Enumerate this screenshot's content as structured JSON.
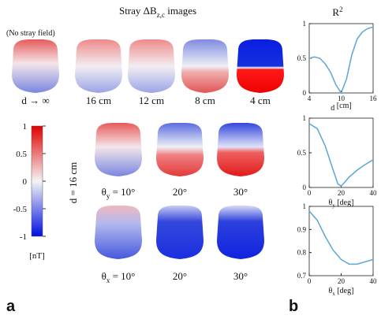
{
  "panel_a": {
    "title": {
      "prefix": "Stray ΔB",
      "sub": "z,c",
      "suffix": " images"
    },
    "note": "(No stray field)",
    "row1_labels": [
      "d → ∞",
      "16 cm",
      "12 cm",
      "8 cm",
      "4 cm"
    ],
    "vertical_label": "d = 16 cm",
    "row2_labels": {
      "first": {
        "symbol": "θ",
        "sub": "y",
        "rest": " = 10°"
      },
      "others": [
        "20°",
        "30°"
      ]
    },
    "row3_labels": {
      "first": {
        "symbol": "θ",
        "sub": "x",
        "rest": " = 10°"
      },
      "others": [
        "20°",
        "30°"
      ]
    },
    "colorbar": {
      "range": [
        -1,
        1
      ],
      "ticks": [
        1,
        0.5,
        0,
        -0.5,
        -1
      ],
      "unit": "[nT]"
    },
    "label": "a"
  },
  "panel_b": {
    "title": {
      "text": "R",
      "sup": "2"
    },
    "label": "b"
  },
  "chart_data": [
    {
      "type": "line",
      "xlabel": {
        "symbol": "d",
        "sub": "",
        "rest": " [cm]"
      },
      "color": "#5aa6d6",
      "x": [
        4,
        5,
        6,
        7,
        8,
        9,
        10,
        11,
        12,
        13,
        14,
        15,
        16
      ],
      "values": [
        0.5,
        0.52,
        0.5,
        0.42,
        0.3,
        0.12,
        0.0,
        0.2,
        0.55,
        0.78,
        0.88,
        0.93,
        0.95
      ],
      "xlim": [
        4,
        16
      ],
      "xticks": [
        4,
        10,
        16
      ],
      "ylim": [
        0,
        1
      ],
      "yticks": [
        0,
        0.5,
        1
      ]
    },
    {
      "type": "line",
      "xlabel": {
        "symbol": "θ",
        "sub": "y",
        "rest": " [deg]"
      },
      "color": "#5aa6d6",
      "x": [
        0,
        5,
        10,
        15,
        18,
        20,
        22,
        25,
        30,
        35,
        40
      ],
      "values": [
        0.92,
        0.85,
        0.6,
        0.25,
        0.05,
        0.02,
        0.07,
        0.15,
        0.25,
        0.33,
        0.4
      ],
      "xlim": [
        0,
        40
      ],
      "xticks": [
        0,
        20,
        40
      ],
      "ylim": [
        0,
        1
      ],
      "yticks": [
        0,
        0.5,
        1
      ]
    },
    {
      "type": "line",
      "xlabel": {
        "symbol": "θ",
        "sub": "x",
        "rest": " [deg]"
      },
      "color": "#5aa6d6",
      "x": [
        0,
        5,
        10,
        15,
        20,
        25,
        30,
        35,
        40
      ],
      "values": [
        0.98,
        0.94,
        0.87,
        0.81,
        0.77,
        0.75,
        0.75,
        0.76,
        0.77
      ],
      "xlim": [
        0,
        40
      ],
      "xticks": [
        0,
        20,
        40
      ],
      "ylim": [
        0.7,
        1
      ],
      "yticks": [
        0.7,
        0.8,
        0.9,
        1
      ]
    }
  ]
}
